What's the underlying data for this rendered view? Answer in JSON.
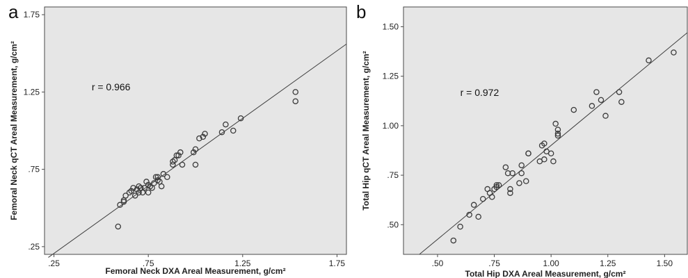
{
  "colors": {
    "plot_background": "#e6e6e6",
    "frame": "#4a4a4a",
    "marker": "#3a3a3a",
    "fit_line": "#3f3f3f"
  },
  "chart_data": [
    {
      "type": "scatter",
      "panel_label": "a",
      "title": "",
      "xlabel": "Femoral Neck DXA Areal Measurement, g/cm²",
      "ylabel": "Femoral Neck qCT Areal Measurement, g/cm²",
      "xlim": [
        0.2,
        1.8
      ],
      "ylim": [
        0.2,
        1.8
      ],
      "xticks": [
        0.25,
        0.75,
        1.25,
        1.75
      ],
      "yticks": [
        0.25,
        0.75,
        1.25,
        1.75
      ],
      "xtick_labels": [
        ".25",
        ".75",
        "1.25",
        "1.75"
      ],
      "ytick_labels": [
        ".25",
        ".75",
        "1.25",
        "1.75"
      ],
      "grid": false,
      "annotation": "r = 0.966",
      "annotation_pos": [
        0.45,
        1.26
      ],
      "fit_line": [
        [
          0.22,
          0.18
        ],
        [
          1.8,
          1.56
        ]
      ],
      "points": [
        [
          0.59,
          0.38
        ],
        [
          0.6,
          0.52
        ],
        [
          0.62,
          0.54
        ],
        [
          0.62,
          0.55
        ],
        [
          0.63,
          0.58
        ],
        [
          0.65,
          0.6
        ],
        [
          0.66,
          0.61
        ],
        [
          0.67,
          0.63
        ],
        [
          0.68,
          0.58
        ],
        [
          0.69,
          0.62
        ],
        [
          0.7,
          0.6
        ],
        [
          0.7,
          0.64
        ],
        [
          0.71,
          0.63
        ],
        [
          0.72,
          0.6
        ],
        [
          0.73,
          0.63
        ],
        [
          0.74,
          0.67
        ],
        [
          0.75,
          0.65
        ],
        [
          0.75,
          0.6
        ],
        [
          0.76,
          0.64
        ],
        [
          0.77,
          0.63
        ],
        [
          0.78,
          0.66
        ],
        [
          0.79,
          0.7
        ],
        [
          0.8,
          0.7
        ],
        [
          0.8,
          0.68
        ],
        [
          0.81,
          0.67
        ],
        [
          0.82,
          0.64
        ],
        [
          0.83,
          0.72
        ],
        [
          0.85,
          0.7
        ],
        [
          0.88,
          0.78
        ],
        [
          0.88,
          0.8
        ],
        [
          0.89,
          0.81
        ],
        [
          0.9,
          0.84
        ],
        [
          0.91,
          0.84
        ],
        [
          0.92,
          0.86
        ],
        [
          0.93,
          0.78
        ],
        [
          0.99,
          0.86
        ],
        [
          1.0,
          0.78
        ],
        [
          1.0,
          0.88
        ],
        [
          1.02,
          0.95
        ],
        [
          1.04,
          0.96
        ],
        [
          1.05,
          0.98
        ],
        [
          1.14,
          0.99
        ],
        [
          1.16,
          1.04
        ],
        [
          1.2,
          1.0
        ],
        [
          1.24,
          1.08
        ],
        [
          1.53,
          1.19
        ],
        [
          1.53,
          1.25
        ]
      ]
    },
    {
      "type": "scatter",
      "panel_label": "b",
      "title": "",
      "xlabel": "Total Hip DXA Areal Measurement, g/cm²",
      "ylabel": "Total Hip qCT Areal Measurement, g/cm²",
      "xlim": [
        0.35,
        1.6
      ],
      "ylim": [
        0.35,
        1.6
      ],
      "xticks": [
        0.5,
        0.75,
        1.0,
        1.25,
        1.5
      ],
      "yticks": [
        0.5,
        0.75,
        1.0,
        1.25,
        1.5
      ],
      "xtick_labels": [
        ".50",
        ".75",
        "1.00",
        "1.25",
        "1.50"
      ],
      "ytick_labels": [
        ".50",
        ".75",
        "1.00",
        "1.25",
        "1.50"
      ],
      "grid": false,
      "annotation": "r = 0.972",
      "annotation_pos": [
        0.6,
        1.15
      ],
      "fit_line": [
        [
          0.42,
          0.35
        ],
        [
          1.6,
          1.47
        ]
      ],
      "points": [
        [
          0.57,
          0.42
        ],
        [
          0.6,
          0.49
        ],
        [
          0.64,
          0.55
        ],
        [
          0.66,
          0.6
        ],
        [
          0.68,
          0.54
        ],
        [
          0.7,
          0.63
        ],
        [
          0.72,
          0.68
        ],
        [
          0.73,
          0.66
        ],
        [
          0.74,
          0.64
        ],
        [
          0.75,
          0.68
        ],
        [
          0.76,
          0.69
        ],
        [
          0.76,
          0.7
        ],
        [
          0.77,
          0.7
        ],
        [
          0.8,
          0.79
        ],
        [
          0.81,
          0.76
        ],
        [
          0.82,
          0.68
        ],
        [
          0.82,
          0.66
        ],
        [
          0.83,
          0.76
        ],
        [
          0.86,
          0.71
        ],
        [
          0.87,
          0.76
        ],
        [
          0.87,
          0.8
        ],
        [
          0.89,
          0.72
        ],
        [
          0.9,
          0.86
        ],
        [
          0.9,
          0.86
        ],
        [
          0.95,
          0.82
        ],
        [
          0.96,
          0.9
        ],
        [
          0.97,
          0.91
        ],
        [
          0.97,
          0.83
        ],
        [
          0.98,
          0.87
        ],
        [
          1.0,
          0.86
        ],
        [
          1.01,
          0.82
        ],
        [
          1.02,
          1.01
        ],
        [
          1.03,
          0.98
        ],
        [
          1.03,
          0.96
        ],
        [
          1.03,
          0.95
        ],
        [
          1.1,
          1.08
        ],
        [
          1.18,
          1.1
        ],
        [
          1.2,
          1.17
        ],
        [
          1.22,
          1.13
        ],
        [
          1.24,
          1.05
        ],
        [
          1.3,
          1.17
        ],
        [
          1.31,
          1.12
        ],
        [
          1.43,
          1.33
        ],
        [
          1.54,
          1.37
        ]
      ]
    }
  ]
}
